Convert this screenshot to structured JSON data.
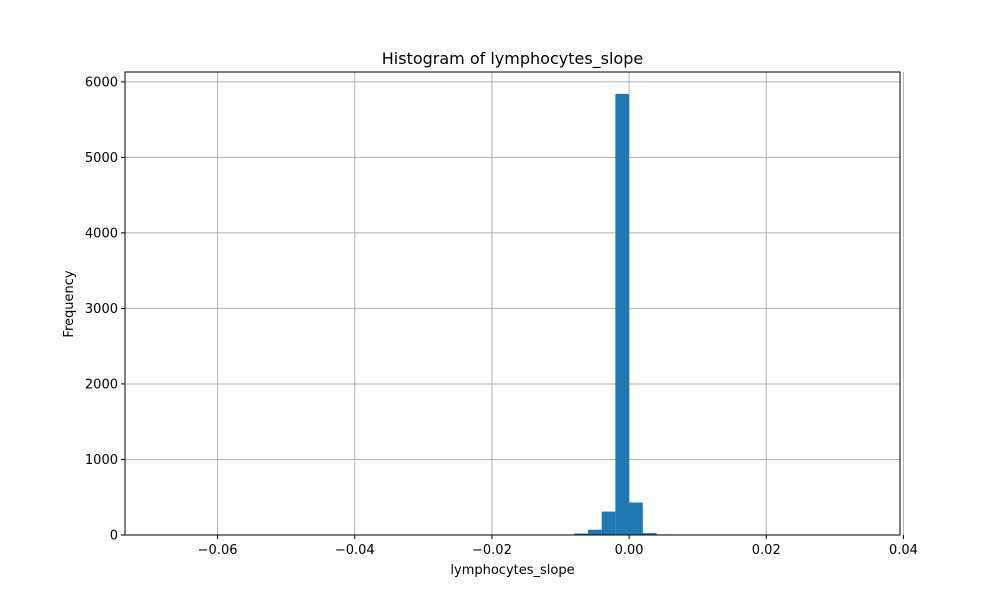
{
  "chart_data": {
    "type": "bar",
    "title": "Histogram of lymphocytes_slope",
    "xlabel": "lymphocytes_slope",
    "ylabel": "Frequency",
    "xlim": [
      -0.0735,
      0.0395
    ],
    "ylim": [
      0,
      6130
    ],
    "x_ticks": [
      -0.06,
      -0.04,
      -0.02,
      0.0,
      0.02,
      0.04
    ],
    "x_tick_labels": [
      "−0.06",
      "−0.04",
      "−0.02",
      "0.00",
      "0.02",
      "0.04"
    ],
    "y_ticks": [
      0,
      1000,
      2000,
      3000,
      4000,
      5000,
      6000
    ],
    "y_tick_labels": [
      "0",
      "1000",
      "2000",
      "3000",
      "4000",
      "5000",
      "6000"
    ],
    "grid": true,
    "bar_color": "#1f77b4",
    "grid_color": "#b0b0b0",
    "bins": [
      {
        "x0": -0.008,
        "x1": -0.006,
        "value": 20
      },
      {
        "x0": -0.006,
        "x1": -0.004,
        "value": 70
      },
      {
        "x0": -0.004,
        "x1": -0.002,
        "value": 310
      },
      {
        "x0": -0.002,
        "x1": 0.0,
        "value": 5840
      },
      {
        "x0": 0.0,
        "x1": 0.002,
        "value": 430
      },
      {
        "x0": 0.002,
        "x1": 0.004,
        "value": 25
      },
      {
        "x0": 0.004,
        "x1": 0.006,
        "value": 8
      },
      {
        "x0": 0.006,
        "x1": 0.008,
        "value": 3
      }
    ]
  }
}
